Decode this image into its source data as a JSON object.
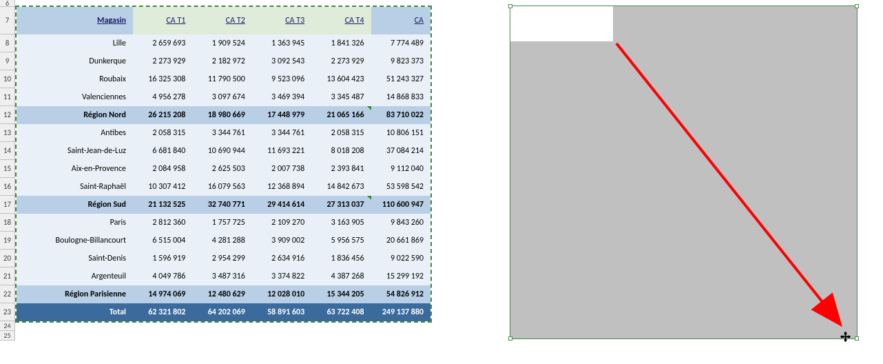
{
  "rowNumbers": [
    "6",
    "7",
    "8",
    "9",
    "10",
    "11",
    "12",
    "13",
    "14",
    "15",
    "16",
    "17",
    "18",
    "19",
    "20",
    "21",
    "22",
    "23",
    "24",
    "25"
  ],
  "columns": {
    "store": "Magasin",
    "q1": "CA T1",
    "q2": "CA T2",
    "q3": "CA T3",
    "q4": "CA T4",
    "ca": "CA"
  },
  "rows": [
    {
      "type": "data",
      "store": "Lille",
      "q1": "2 659 693",
      "q2": "1 909 524",
      "q3": "1 363 945",
      "q4": "1 841 326",
      "ca": "7 774 489"
    },
    {
      "type": "data",
      "store": "Dunkerque",
      "q1": "2 273 929",
      "q2": "2 182 972",
      "q3": "3 092 543",
      "q4": "2 273 929",
      "ca": "9 823 373"
    },
    {
      "type": "data",
      "store": "Roubaix",
      "q1": "16 325 308",
      "q2": "11 790 500",
      "q3": "9 523 096",
      "q4": "13 604 423",
      "ca": "51 243 327"
    },
    {
      "type": "data",
      "store": "Valenciennes",
      "q1": "4 956 278",
      "q2": "3 097 674",
      "q3": "3 469 394",
      "q4": "3 345 487",
      "ca": "14 868 833"
    },
    {
      "type": "region",
      "store": "Région Nord",
      "q1": "26 215 208",
      "q2": "18 980 669",
      "q3": "17 448 979",
      "q4": "21 065 166",
      "ca": "83 710 022",
      "flagQ4": true
    },
    {
      "type": "data",
      "store": "Antibes",
      "q1": "2 058 315",
      "q2": "3 344 761",
      "q3": "3 344 761",
      "q4": "2 058 315",
      "ca": "10 806 151"
    },
    {
      "type": "data",
      "store": "Saint-Jean-de-Luz",
      "q1": "6 681 840",
      "q2": "10 690 944",
      "q3": "11 693 221",
      "q4": "8 018 208",
      "ca": "37 084 214"
    },
    {
      "type": "data",
      "store": "Aix-en-Provence",
      "q1": "2 084 958",
      "q2": "2 625 503",
      "q3": "2 007 738",
      "q4": "2 393 841",
      "ca": "9 112 040"
    },
    {
      "type": "data",
      "store": "Saint-Raphaël",
      "q1": "10 307 412",
      "q2": "16 079 563",
      "q3": "12 368 894",
      "q4": "14 842 673",
      "ca": "53 598 542"
    },
    {
      "type": "region",
      "store": "Région Sud",
      "q1": "21 132 525",
      "q2": "32 740 771",
      "q3": "29 414 614",
      "q4": "27 313 037",
      "ca": "110 600 947",
      "flagQ4": true
    },
    {
      "type": "data",
      "store": "Paris",
      "q1": "2 812 360",
      "q2": "1 757 725",
      "q3": "2 109 270",
      "q4": "3 163 905",
      "ca": "9 843 260"
    },
    {
      "type": "data",
      "store": "Boulogne-Billancourt",
      "q1": "6 515 004",
      "q2": "4 281 288",
      "q3": "3 909 002",
      "q4": "5 956 575",
      "ca": "20 661 869"
    },
    {
      "type": "data",
      "store": "Saint-Denis",
      "q1": "1 596 919",
      "q2": "2 954 299",
      "q3": "2 634 916",
      "q4": "1 836 456",
      "ca": "9 022 590"
    },
    {
      "type": "data",
      "store": "Argenteuil",
      "q1": "4 049 786",
      "q2": "3 487 316",
      "q3": "3 374 822",
      "q4": "4 387 268",
      "ca": "15 299 192"
    },
    {
      "type": "region",
      "store": "Région Parisienne",
      "q1": "14 974 069",
      "q2": "12 480 629",
      "q3": "12 028 010",
      "q4": "15 344 205",
      "ca": "54 826 912"
    },
    {
      "type": "total",
      "store": "Total",
      "q1": "62 321 802",
      "q2": "64 202 069",
      "q3": "58 891 603",
      "q4": "63 722 408",
      "ca": "249 137 880"
    }
  ],
  "colors": {
    "headerStore": "#b8cfe6",
    "headerQ": "#deecd9",
    "dataRow": "#e9f0f7",
    "regionRow": "#b8cfe6",
    "totalRow": "#3a6b9c",
    "selectionBorder": "#3a8a3a",
    "pictureBg": "#c0c0c0",
    "arrow": "#ff0000"
  }
}
